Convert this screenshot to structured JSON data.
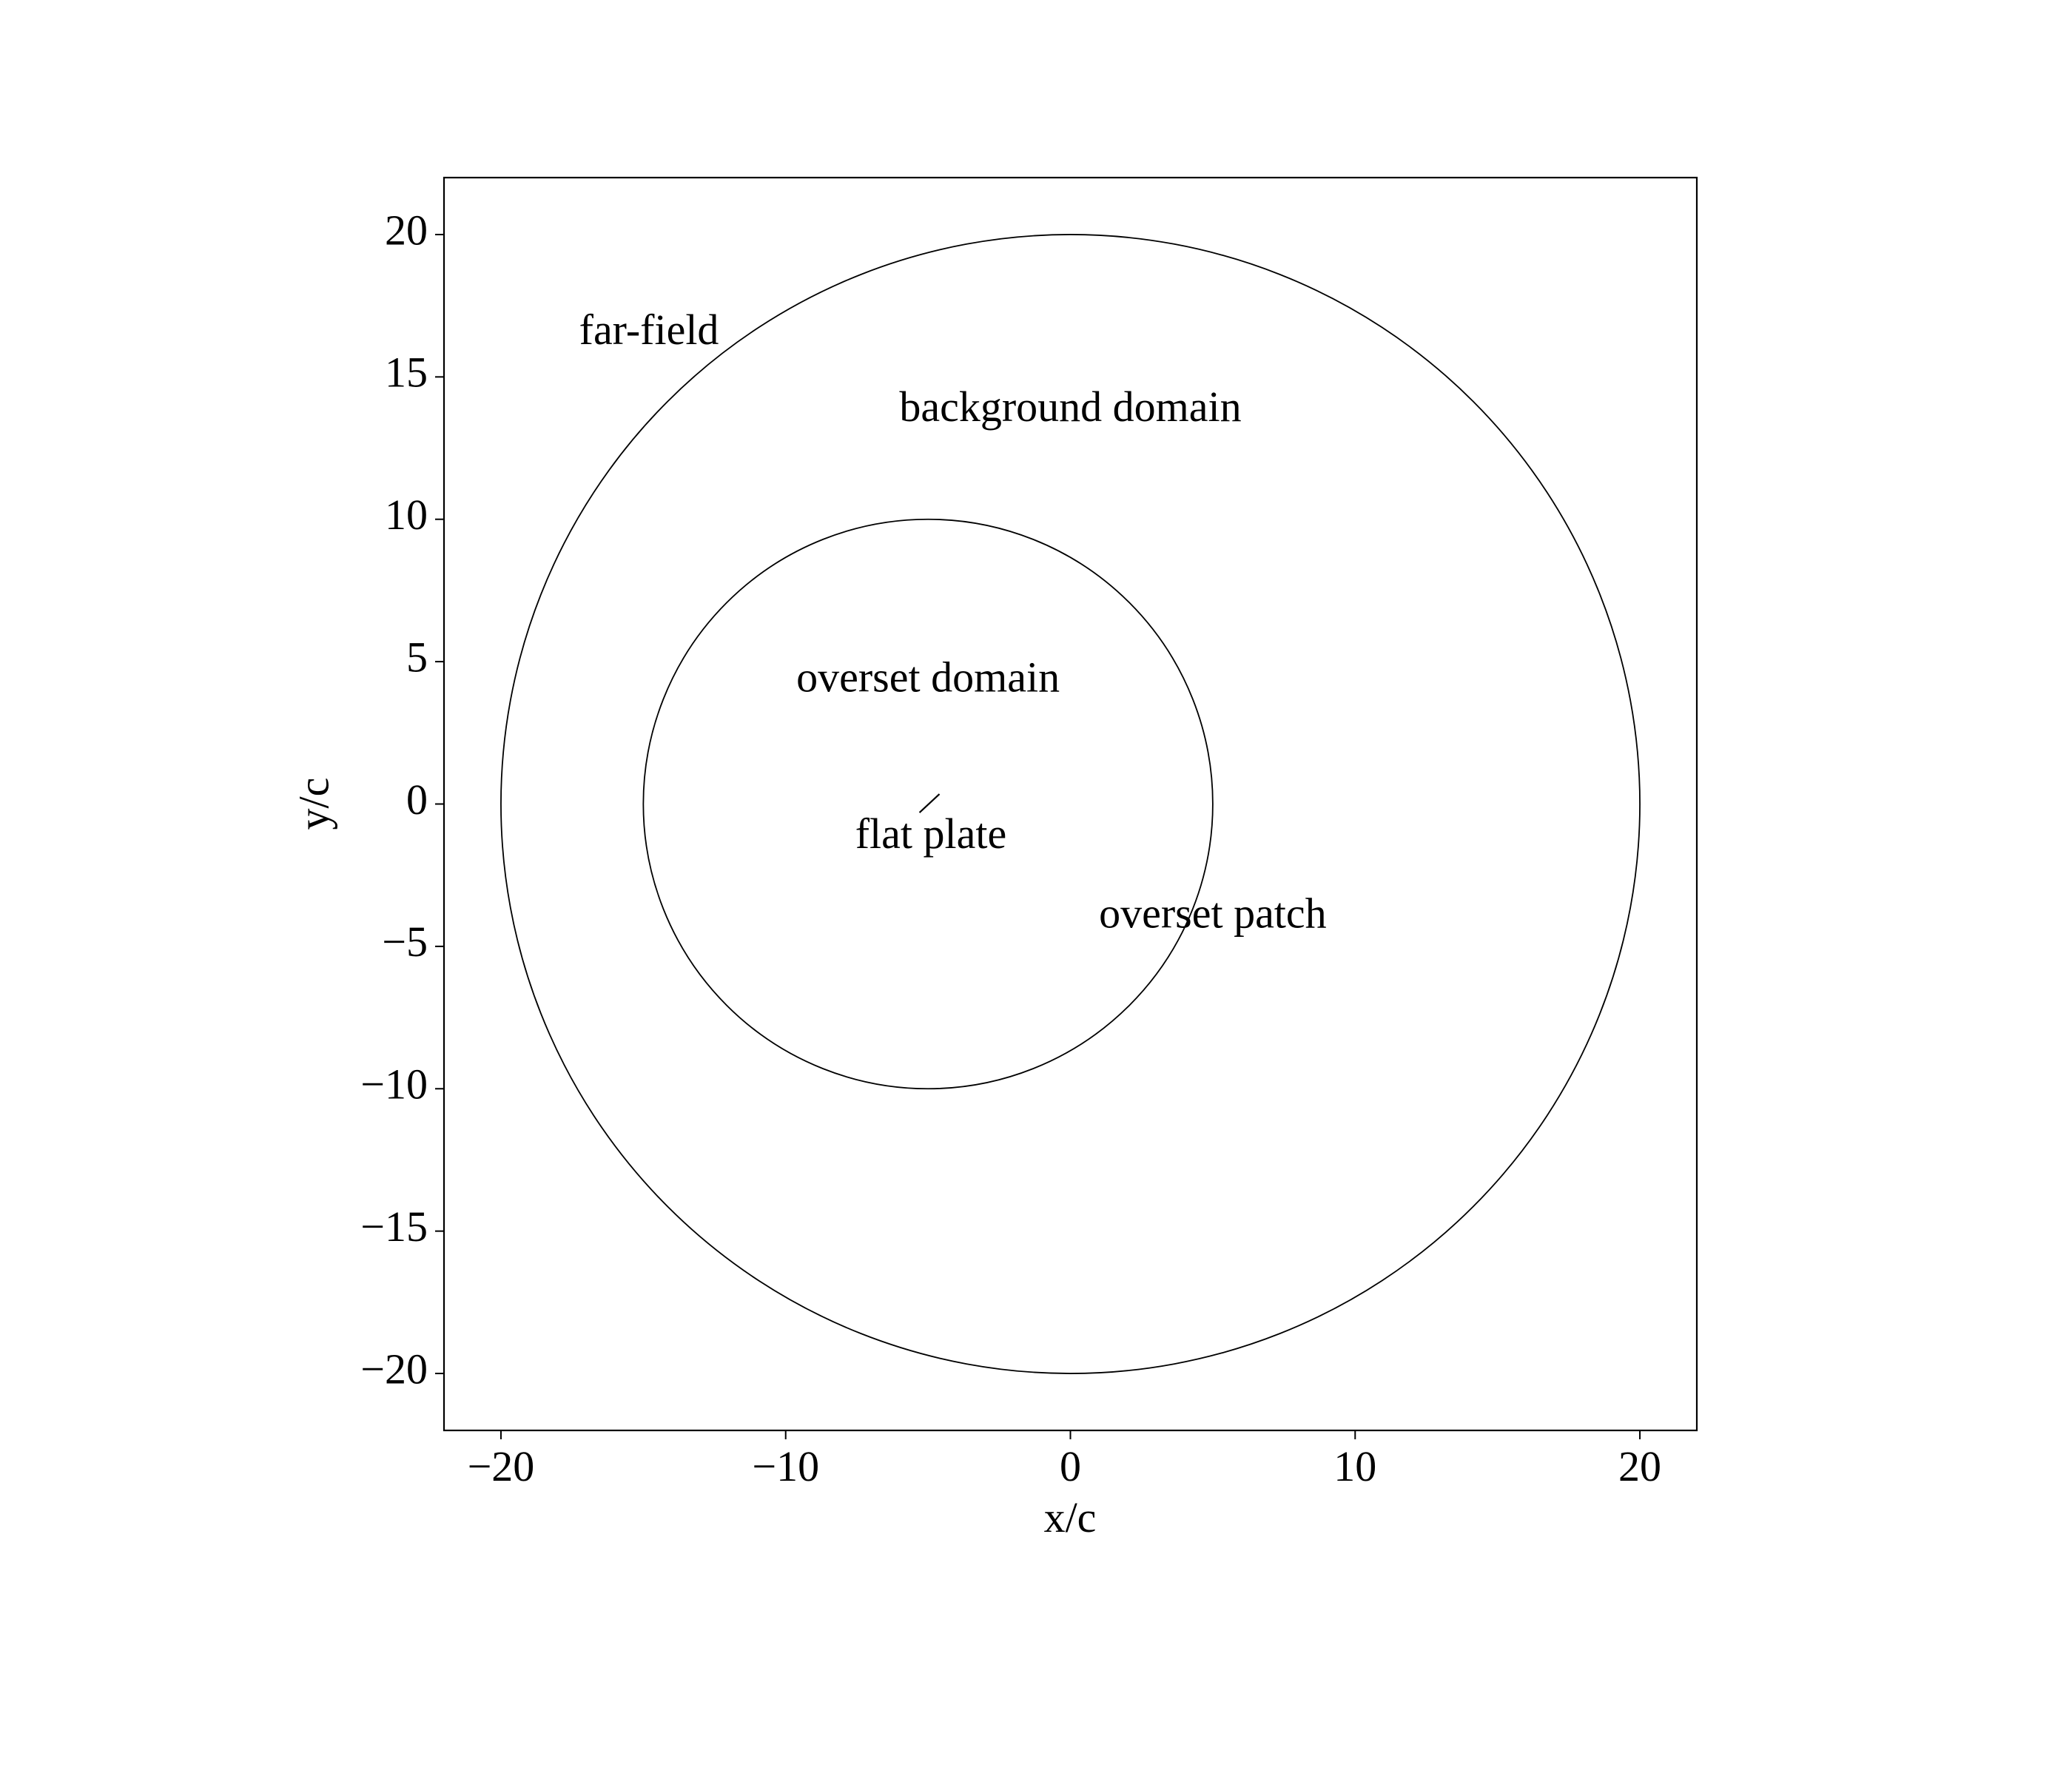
{
  "chart_data": {
    "type": "diagram",
    "title": "",
    "xlabel": "x/c",
    "ylabel": "y/c",
    "xlim": [
      -22,
      22
    ],
    "ylim": [
      -22,
      22
    ],
    "x_ticks": [
      -20,
      -10,
      0,
      10,
      20
    ],
    "y_ticks": [
      -20,
      -15,
      -10,
      -5,
      0,
      5,
      10,
      15,
      20
    ],
    "x_tick_labels": [
      "−20",
      "−10",
      "0",
      "10",
      "20"
    ],
    "y_tick_labels": [
      "−20",
      "−15",
      "−10",
      "−5",
      "0",
      "5",
      "10",
      "15",
      "20"
    ],
    "grid": false,
    "circles": [
      {
        "name": "far-field-boundary",
        "cx": 0,
        "cy": 0,
        "r": 20
      },
      {
        "name": "overset-boundary",
        "cx": -5,
        "cy": 0,
        "r": 10
      }
    ],
    "plate": {
      "x1": -5.3,
      "y1": -0.3,
      "x2": -4.6,
      "y2": 0.35
    },
    "annotations": [
      {
        "key": "far-field",
        "text": "far-field",
        "x": -14.8,
        "y": 16.5
      },
      {
        "key": "background-domain",
        "text": "background domain",
        "x": 0,
        "y": 13.8
      },
      {
        "key": "overset-domain",
        "text": "overset domain",
        "x": -5,
        "y": 4.3
      },
      {
        "key": "flat-plate",
        "text": "flat plate",
        "x": -4.9,
        "y": -1.2
      },
      {
        "key": "overset-patch",
        "text": "overset patch",
        "x": 5,
        "y": -4.0
      }
    ],
    "line_color": "#000000"
  }
}
